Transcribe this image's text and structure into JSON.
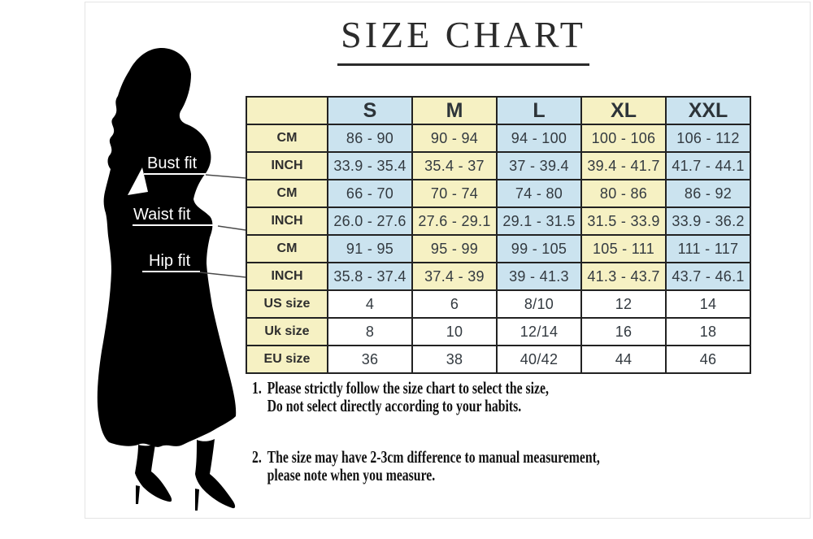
{
  "title": "SIZE CHART",
  "figure": {
    "labels": [
      {
        "text": "Bust fit"
      },
      {
        "text": "Waist fit"
      },
      {
        "text": "Hip fit"
      }
    ]
  },
  "chart_data": {
    "type": "table",
    "title": "SIZE CHART",
    "columns": [
      "S",
      "M",
      "L",
      "XL",
      "XXL"
    ],
    "measure_rows": [
      {
        "section": "Bust fit",
        "unit": "CM",
        "values": [
          "86 - 90",
          "90 - 94",
          "94 - 100",
          "100 - 106",
          "106 - 112"
        ]
      },
      {
        "section": "Bust fit",
        "unit": "INCH",
        "values": [
          "33.9 - 35.4",
          "35.4 - 37",
          "37 - 39.4",
          "39.4 - 41.7",
          "41.7 - 44.1"
        ]
      },
      {
        "section": "Waist fit",
        "unit": "CM",
        "values": [
          "66 - 70",
          "70 - 74",
          "74 - 80",
          "80 - 86",
          "86 - 92"
        ]
      },
      {
        "section": "Waist fit",
        "unit": "INCH",
        "values": [
          "26.0 - 27.6",
          "27.6 - 29.1",
          "29.1 - 31.5",
          "31.5 - 33.9",
          "33.9 - 36.2"
        ]
      },
      {
        "section": "Hip fit",
        "unit": "CM",
        "values": [
          "91 - 95",
          "95 - 99",
          "99 - 105",
          "105 - 111",
          "111 - 117"
        ]
      },
      {
        "section": "Hip fit",
        "unit": "INCH",
        "values": [
          "35.8 - 37.4",
          "37.4 - 39",
          "39 - 41.3",
          "41.3 - 43.7",
          "43.7 - 46.1"
        ]
      }
    ],
    "size_rows": [
      {
        "label": "US size",
        "values": [
          "4",
          "6",
          "8/10",
          "12",
          "14"
        ]
      },
      {
        "label": "Uk size",
        "values": [
          "8",
          "10",
          "12/14",
          "16",
          "18"
        ]
      },
      {
        "label": "EU size",
        "values": [
          "36",
          "38",
          "40/42",
          "44",
          "46"
        ]
      }
    ]
  },
  "notes": [
    {
      "number": "1.",
      "lines": [
        "Please strictly follow the size chart to select the size,",
        "Do not select directly according to your habits."
      ]
    },
    {
      "number": "2.",
      "lines": [
        "The size may have 2-3cm difference  to manual measurement,",
        "please note when you measure."
      ]
    }
  ],
  "colors": {
    "cell_yellow": "#f6f1c3",
    "cell_blue": "#cbe3ef",
    "cell_white": "#ffffff",
    "grid_border": "#222222",
    "header_text": "#2d3439",
    "table_text": "#333a40",
    "silhouette": "#000000",
    "note_text": "#111111"
  }
}
